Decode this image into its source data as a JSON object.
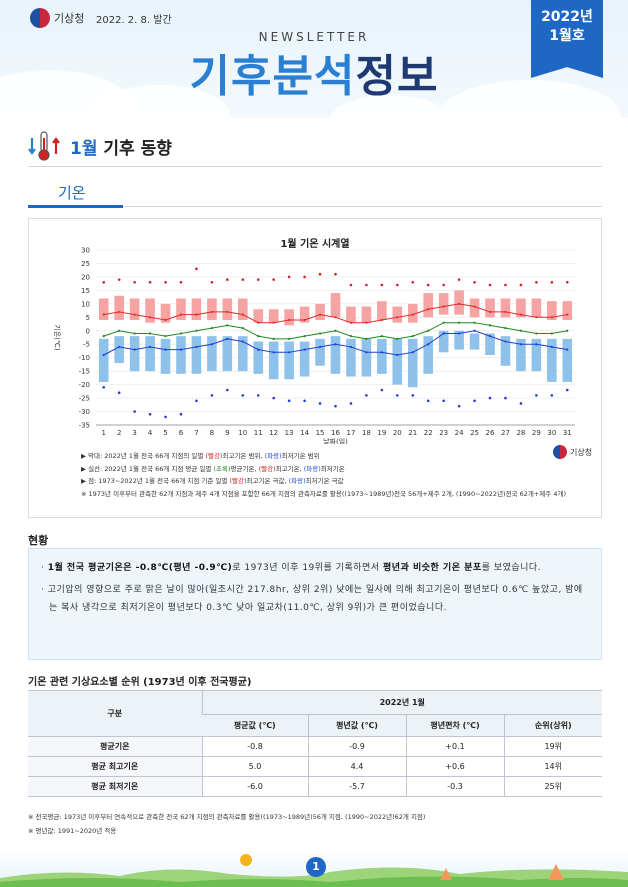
{
  "header": {
    "agency": "기상청",
    "issue_date": "2022. 2. 8. 발간",
    "newsletter": "NEWSLETTER",
    "title_part1": "기후분석",
    "title_part2": "정보",
    "ribbon_year": "2022년",
    "ribbon_month": "1월호"
  },
  "section": {
    "title_highlight": "1월",
    "title_rest": " 기후 동향"
  },
  "subtab": {
    "label": "기온"
  },
  "chart_data": {
    "type": "bar",
    "title": "1월 기온 시계열",
    "ylabel": "기온(℃)",
    "xlabel": "날짜(일)",
    "ylim": [
      -35,
      30
    ],
    "y_ticks": [
      30,
      25,
      20,
      15,
      10,
      5,
      0,
      -5,
      -10,
      -15,
      -20,
      -25,
      -30,
      -35
    ],
    "x": [
      1,
      2,
      3,
      4,
      5,
      6,
      7,
      8,
      9,
      10,
      11,
      12,
      13,
      14,
      15,
      16,
      17,
      18,
      19,
      20,
      21,
      22,
      23,
      24,
      25,
      26,
      27,
      28,
      29,
      30,
      31
    ],
    "grid": true,
    "series": [
      {
        "name": "평년 최고기온 범위",
        "values_low": [
          4,
          4,
          4,
          3,
          3,
          4,
          4,
          4,
          4,
          4,
          3,
          3,
          2,
          3,
          4,
          5,
          3,
          3,
          4,
          3,
          3,
          5,
          6,
          6,
          5,
          5,
          5,
          5,
          5,
          4,
          4
        ],
        "values_high": [
          12,
          13,
          12,
          12,
          10,
          12,
          12,
          12,
          12,
          12,
          8,
          8,
          8,
          9,
          10,
          14,
          9,
          9,
          11,
          9,
          10,
          14,
          14,
          15,
          12,
          12,
          12,
          12,
          12,
          11,
          11
        ],
        "color": "#f5a3a3"
      },
      {
        "name": "평년 최저기온 범위",
        "values_low": [
          -19,
          -12,
          -15,
          -15,
          -16,
          -16,
          -16,
          -15,
          -15,
          -15,
          -16,
          -18,
          -18,
          -17,
          -13,
          -16,
          -17,
          -17,
          -16,
          -20,
          -21,
          -16,
          -8,
          -7,
          -7,
          -9,
          -13,
          -15,
          -15,
          -19,
          -19
        ],
        "values_high": [
          -3,
          -2,
          -2,
          -2,
          -3,
          -2,
          -2,
          -2,
          -2,
          -2,
          -4,
          -4,
          -4,
          -4,
          -3,
          -2,
          -3,
          -3,
          -3,
          -3,
          -3,
          -2,
          0,
          0,
          -1,
          -1,
          -2,
          -3,
          -3,
          -3,
          -3
        ],
        "color": "#8ec2ea"
      },
      {
        "name": "최고기온",
        "values": [
          6,
          7,
          6,
          5,
          4,
          6,
          6,
          7,
          7,
          6,
          3,
          3,
          4,
          4,
          6,
          5,
          3,
          3,
          4,
          5,
          6,
          8,
          9,
          10,
          9,
          7,
          7,
          6,
          5,
          5,
          6
        ],
        "color": "#e22a2a"
      },
      {
        "name": "평균기온",
        "values": [
          -2,
          0,
          -1,
          -1,
          -2,
          -1,
          0,
          1,
          2,
          1,
          -2,
          -3,
          -3,
          -2,
          -1,
          0,
          -2,
          -3,
          -2,
          -3,
          -2,
          0,
          3,
          3,
          3,
          2,
          1,
          0,
          -1,
          -1,
          0
        ],
        "color": "#1e8a1e"
      },
      {
        "name": "최저기온",
        "values": [
          -9,
          -6,
          -7,
          -6,
          -7,
          -7,
          -6,
          -5,
          -3,
          -4,
          -7,
          -8,
          -8,
          -7,
          -6,
          -5,
          -6,
          -8,
          -8,
          -9,
          -8,
          -5,
          -1,
          -1,
          0,
          -2,
          -4,
          -5,
          -5,
          -6,
          -7
        ],
        "color": "#1f3fd0"
      },
      {
        "name": "극값 최고기온",
        "values": [
          18,
          19,
          18,
          18,
          18,
          18,
          23,
          18,
          19,
          19,
          19,
          19,
          20,
          20,
          21,
          21,
          17,
          17,
          17,
          17,
          18,
          17,
          17,
          19,
          18,
          17,
          17,
          17,
          18,
          18,
          18
        ],
        "color": "#d32020"
      },
      {
        "name": "극값 최저기온",
        "values": [
          -21,
          -23,
          -30,
          -31,
          -32,
          -31,
          -26,
          -24,
          -22,
          -24,
          -24,
          -25,
          -26,
          -26,
          -27,
          -28,
          -27,
          -24,
          -22,
          -24,
          -24,
          -26,
          -26,
          -28,
          -26,
          -25,
          -25,
          -27,
          -24,
          -24,
          -22
        ],
        "color": "#1f3fd0"
      }
    ]
  },
  "chart_notes": {
    "watermark": "기상청",
    "n1_a": "▶ 막대: 2022년 1월 전국 66개 지점의 일별 ",
    "n1_red": "(빨강)",
    "n1_b": "최고기온 범위, ",
    "n1_blue": "(파랑)",
    "n1_c": "최저기온 범위",
    "n2_a": "▶ 실선: 2022년 1월 전국 66개 지점 평균 일별 ",
    "n2_green": "(초록)",
    "n2_b": "평균기온, ",
    "n2_red": "(빨강)",
    "n2_c": "최고기온, ",
    "n2_blue": "(파랑)",
    "n2_d": "최저기온",
    "n3_a": "▶ 점: 1973~2022년 1월 전국 66개 지점 기준 일별 ",
    "n3_red": "(빨강)",
    "n3_b": "최고기온 극값, ",
    "n3_blue": "(파랑)",
    "n3_c": "최저기온 극값",
    "n4": "※ 1973년 이후부터 관측한 62개 지점과 제주 4개 지점을 포함한 66개 지점의 관측자료를 활용((1973~1989년)전국 56개+제주 2개, (1990~2022년)전국 62개+제주 4개)"
  },
  "status": {
    "heading": "현황",
    "p1_bold1": "1월 전국 평균기온은 -0.8℃(평년 -0.9℃)",
    "p1_mid": "로 1973년 이후 19위를 기록하면서 ",
    "p1_bold2": "평년과 비슷한 기온 분포",
    "p1_end": "를 보였습니다.",
    "p2": "고기압의 영향으로 주로 맑은 날이 많아(일조시간 217.8hr, 상위 2위) 낮에는 일사에 의해 최고기온이 평년보다 0.6℃ 높았고, 밤에는 복사 냉각으로 최저기온이 평년보다 0.3℃ 낮아 일교차(11.0℃, 상위 9위)가 큰 편이었습니다."
  },
  "rank_table": {
    "heading": "기온 관련 기상요소별 순위 (1973년 이후 전국평균)",
    "col_group": "구분",
    "col_span": "2022년 1월",
    "columns": [
      "평균값 (℃)",
      "평년값 (℃)",
      "평년편차 (℃)",
      "순위(상위)"
    ],
    "rows": [
      {
        "label": "평균기온",
        "cells": [
          "-0.8",
          "-0.9",
          "+0.1",
          "19위"
        ]
      },
      {
        "label": "평균 최고기온",
        "cells": [
          "5.0",
          "4.4",
          "+0.6",
          "14위"
        ]
      },
      {
        "label": "평균 최저기온",
        "cells": [
          "-6.0",
          "-5.7",
          "-0.3",
          "25위"
        ]
      }
    ]
  },
  "footnotes": {
    "f1": "※ 전국평균: 1973년 이후부터 연속적으로 관측한 전국 62개 지점의 관측자료를 활용((1973~1989년)56개 지점, (1990~2022년)62개 지점)",
    "f2": "※ 평년값: 1991~2020년 적용"
  },
  "footer": {
    "page": "1"
  }
}
